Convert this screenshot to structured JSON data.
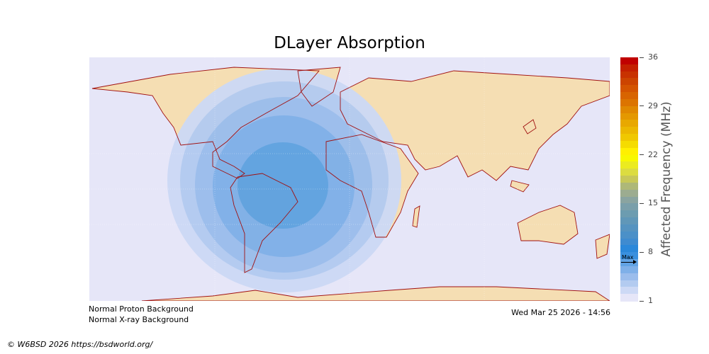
{
  "title": "DLayer Absorption",
  "colorbar": {
    "label": "Affected Frequency (MHz)",
    "min": 1,
    "max": 36,
    "ticks": [
      "1",
      "8",
      "15",
      "22",
      "29",
      "36"
    ],
    "max_marker_label": "Max",
    "max_marker_value": 6.6,
    "colors": [
      "#e6e6f8",
      "#cdd9f5",
      "#b3cbf0",
      "#9bbdec",
      "#7fb0e8",
      "#62a3e4",
      "#3a90de",
      "#2b88da",
      "#3f8bd0",
      "#4b90c8",
      "#5593c0",
      "#6097b8",
      "#6c9cb0",
      "#7a9faa",
      "#8aa4a0",
      "#9cac90",
      "#aeb878",
      "#c8c858",
      "#dcdc40",
      "#ebeb20",
      "#f8f800",
      "#fff000",
      "#f5dc00",
      "#f0c800",
      "#ecb800",
      "#e8a800",
      "#e49800",
      "#e08800",
      "#dc7400",
      "#d86400",
      "#d45400",
      "#cc4400",
      "#c83200",
      "#c42000",
      "#c00000"
    ]
  },
  "status": {
    "proton": "Normal Proton Background",
    "xray": "Normal X-ray Background",
    "timestamp": "Wed Mar 25 2026 - 14:56"
  },
  "credit": "© W6BSD 2026 https://bsdworld.org/",
  "map_colors": {
    "ocean": "#e6e6f8",
    "land": "#f5deb3",
    "coast": "#a01010"
  }
}
